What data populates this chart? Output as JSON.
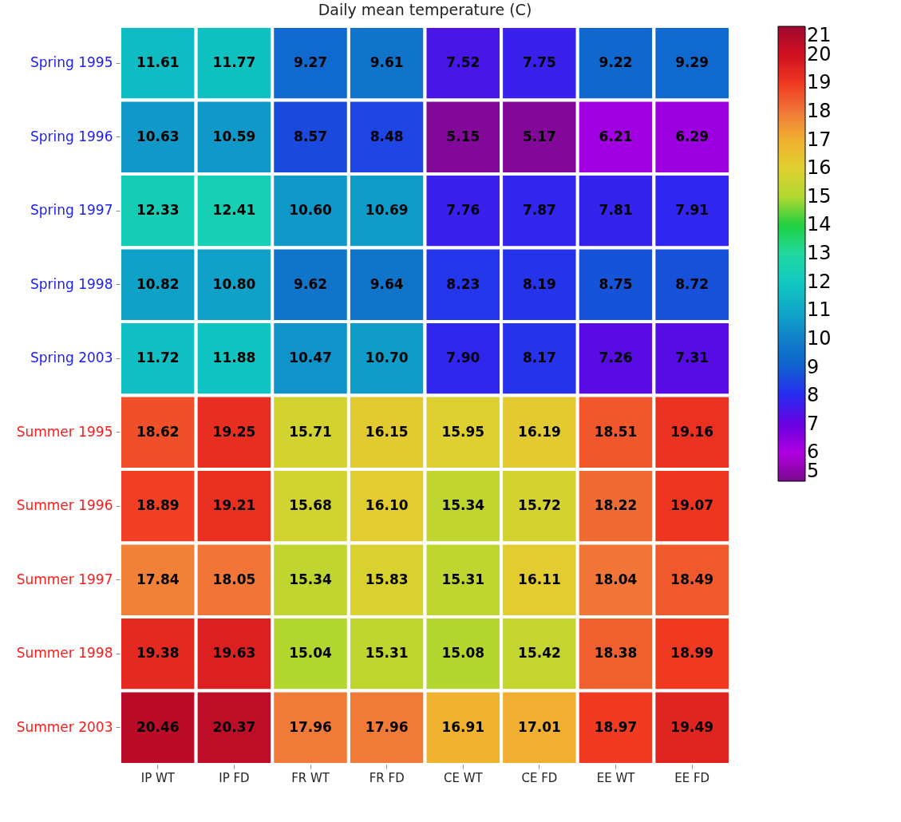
{
  "chart_data": {
    "type": "heatmap",
    "title": "Daily mean temperature (C)",
    "categories": [
      "IP WT",
      "IP FD",
      "FR WT",
      "FR FD",
      "CE WT",
      "CE FD",
      "EE WT",
      "EE FD"
    ],
    "y_categories": [
      "Spring 1995",
      "Spring 1996",
      "Spring 1997",
      "Spring 1998",
      "Spring 2003",
      "Summer 1995",
      "Summer 1996",
      "Summer 1997",
      "Summer 1998",
      "Summer 2003"
    ],
    "cells": [
      [
        11.61,
        11.77,
        9.27,
        9.61,
        7.52,
        7.75,
        9.22,
        9.29
      ],
      [
        10.63,
        10.59,
        8.57,
        8.48,
        5.15,
        5.17,
        6.21,
        6.29
      ],
      [
        12.33,
        12.41,
        10.6,
        10.69,
        7.76,
        7.87,
        7.81,
        7.91
      ],
      [
        10.82,
        10.8,
        9.62,
        9.64,
        8.23,
        8.19,
        8.75,
        8.72
      ],
      [
        11.72,
        11.88,
        10.47,
        10.7,
        7.9,
        8.17,
        7.26,
        7.31
      ],
      [
        18.62,
        19.25,
        15.71,
        16.15,
        15.95,
        16.19,
        18.51,
        19.16
      ],
      [
        18.89,
        19.21,
        15.68,
        16.1,
        15.34,
        15.72,
        18.22,
        19.07
      ],
      [
        17.84,
        18.05,
        15.34,
        15.83,
        15.31,
        16.11,
        18.04,
        18.49
      ],
      [
        19.38,
        19.63,
        15.04,
        15.31,
        15.08,
        15.42,
        18.38,
        18.99
      ],
      [
        20.46,
        20.37,
        17.96,
        17.96,
        16.91,
        17.01,
        18.97,
        19.49
      ]
    ],
    "clim": [
      5,
      21
    ],
    "cticks": [
      5,
      6,
      7,
      8,
      9,
      10,
      11,
      12,
      13,
      14,
      15,
      16,
      17,
      18,
      19,
      20,
      21
    ],
    "cell_labels": [
      [
        "11.61",
        "11.77",
        "9.27",
        "9.61",
        "7.52",
        "7.75",
        "9.22",
        "9.29"
      ],
      [
        "10.63",
        "10.59",
        "8.57",
        "8.48",
        "5.15",
        "5.17",
        "6.21",
        "6.29"
      ],
      [
        "12.33",
        "12.41",
        "10.60",
        "10.69",
        "7.76",
        "7.87",
        "7.81",
        "7.91"
      ],
      [
        "10.82",
        "10.80",
        "9.62",
        "9.64",
        "8.23",
        "8.19",
        "8.75",
        "8.72"
      ],
      [
        "11.72",
        "11.88",
        "10.47",
        "10.70",
        "7.90",
        "8.17",
        "7.26",
        "7.31"
      ],
      [
        "18.62",
        "19.25",
        "15.71",
        "16.15",
        "15.95",
        "16.19",
        "18.51",
        "19.16"
      ],
      [
        "18.89",
        "19.21",
        "15.68",
        "16.10",
        "15.34",
        "15.72",
        "18.22",
        "19.07"
      ],
      [
        "17.84",
        "18.05",
        "15.34",
        "15.83",
        "15.31",
        "16.11",
        "18.04",
        "18.49"
      ],
      [
        "19.38",
        "19.63",
        "15.04",
        "15.31",
        "15.08",
        "15.42",
        "18.38",
        "18.99"
      ],
      [
        "20.46",
        "20.37",
        "17.96",
        "17.96",
        "16.91",
        "17.01",
        "18.97",
        "19.49"
      ]
    ]
  }
}
